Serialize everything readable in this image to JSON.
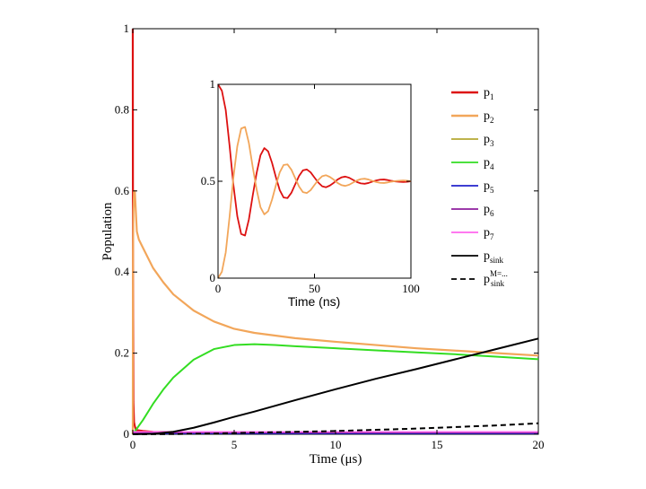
{
  "chart_data": [
    {
      "type": "line",
      "xlabel": "Time (μs)",
      "ylabel": "Population",
      "xlim": [
        0,
        20
      ],
      "ylim": [
        0,
        1
      ],
      "xticks": [
        "0",
        "5",
        "10",
        "15",
        "20"
      ],
      "yticks": [
        "0",
        "0.2",
        "0.4",
        "0.6",
        "0.8",
        "1"
      ],
      "series": [
        {
          "name": "p1",
          "color": "#dd1111",
          "width": 2.2,
          "dash": "",
          "x": [
            0,
            0.003,
            0.01,
            0.03,
            0.06,
            0.1,
            0.15,
            0.2,
            0.5,
            1,
            5,
            20
          ],
          "y": [
            1.0,
            0.75,
            0.42,
            0.08,
            0.03,
            0.02,
            0.012,
            0.01,
            0.008,
            0.006,
            0.004,
            0.003
          ]
        },
        {
          "name": "p2",
          "color": "#f2a65a",
          "width": 2.2,
          "dash": "",
          "x": [
            0,
            0.01,
            0.03,
            0.06,
            0.1,
            0.15,
            0.2,
            0.3,
            0.5,
            1,
            1.5,
            2,
            3,
            4,
            5,
            6,
            8,
            10,
            12,
            14,
            16,
            18,
            20
          ],
          "y": [
            0,
            0.45,
            0.55,
            0.6,
            0.6,
            0.55,
            0.5,
            0.48,
            0.46,
            0.41,
            0.375,
            0.345,
            0.305,
            0.278,
            0.26,
            0.25,
            0.237,
            0.228,
            0.22,
            0.212,
            0.206,
            0.2,
            0.194
          ]
        },
        {
          "name": "p3",
          "color": "#b5a833",
          "width": 1.5,
          "dash": "",
          "x": [
            0,
            20
          ],
          "y": [
            0.003,
            0.003
          ]
        },
        {
          "name": "p4",
          "color": "#33dd22",
          "width": 2.0,
          "dash": "",
          "x": [
            0,
            0.5,
            1,
            1.5,
            2,
            3,
            4,
            5,
            6,
            7,
            8,
            10,
            12,
            14,
            16,
            18,
            20
          ],
          "y": [
            0,
            0.035,
            0.075,
            0.11,
            0.14,
            0.184,
            0.21,
            0.22,
            0.222,
            0.22,
            0.217,
            0.212,
            0.207,
            0.202,
            0.197,
            0.191,
            0.185
          ]
        },
        {
          "name": "p5",
          "color": "#2222cc",
          "width": 1.5,
          "dash": "",
          "x": [
            0,
            20
          ],
          "y": [
            0.002,
            0.002
          ]
        },
        {
          "name": "p6",
          "color": "#8e1f9e",
          "width": 1.5,
          "dash": "",
          "x": [
            0,
            20
          ],
          "y": [
            0.004,
            0.004
          ]
        },
        {
          "name": "p7",
          "color": "#ff66ee",
          "width": 1.5,
          "dash": "",
          "x": [
            0,
            20
          ],
          "y": [
            0.006,
            0.006
          ]
        },
        {
          "name": "p_sink",
          "color": "#000000",
          "width": 2.0,
          "dash": "",
          "x": [
            0,
            1,
            2,
            3,
            4,
            5,
            6,
            8,
            10,
            12,
            14,
            16,
            18,
            20
          ],
          "y": [
            0,
            0.001,
            0.006,
            0.016,
            0.029,
            0.043,
            0.056,
            0.084,
            0.111,
            0.137,
            0.161,
            0.186,
            0.211,
            0.236
          ]
        },
        {
          "name": "p_sink^{M=...}",
          "color": "#000000",
          "width": 2.0,
          "dash": "6,4",
          "x": [
            0,
            2,
            4,
            6,
            8,
            10,
            12,
            14,
            16,
            18,
            20
          ],
          "y": [
            0,
            0.0005,
            0.002,
            0.004,
            0.006,
            0.008,
            0.011,
            0.014,
            0.018,
            0.022,
            0.027
          ]
        }
      ]
    },
    {
      "type": "line",
      "inset": true,
      "xlabel": "Time (ns)",
      "xlim": [
        0,
        100
      ],
      "ylim": [
        0,
        1
      ],
      "xticks": [
        "0",
        "50",
        "100"
      ],
      "yticks": [
        "0",
        "0.5",
        "1"
      ],
      "series": [
        {
          "name": "p1",
          "color": "#dd1111",
          "width": 1.8,
          "x": [
            0,
            2,
            4,
            6,
            8,
            10,
            12,
            14,
            16,
            18,
            20,
            22,
            24,
            26,
            28,
            30,
            32,
            34,
            36,
            38,
            40,
            42,
            44,
            46,
            48,
            50,
            52,
            54,
            56,
            58,
            60,
            62,
            64,
            66,
            68,
            70,
            72,
            74,
            76,
            78,
            80,
            82,
            84,
            86,
            88,
            90,
            92,
            94,
            96,
            98,
            100
          ],
          "y": [
            1.0,
            0.967,
            0.867,
            0.682,
            0.479,
            0.319,
            0.228,
            0.22,
            0.303,
            0.427,
            0.542,
            0.634,
            0.671,
            0.654,
            0.595,
            0.521,
            0.454,
            0.416,
            0.413,
            0.44,
            0.484,
            0.527,
            0.556,
            0.561,
            0.546,
            0.519,
            0.493,
            0.474,
            0.469,
            0.478,
            0.492,
            0.509,
            0.52,
            0.524,
            0.518,
            0.507,
            0.496,
            0.489,
            0.487,
            0.491,
            0.498,
            0.504,
            0.508,
            0.509,
            0.506,
            0.502,
            0.499,
            0.497,
            0.496,
            0.497,
            0.5
          ]
        },
        {
          "name": "p2",
          "color": "#f2a65a",
          "width": 1.8,
          "x": [
            0,
            2,
            4,
            6,
            8,
            10,
            12,
            14,
            16,
            18,
            20,
            22,
            24,
            26,
            28,
            30,
            32,
            34,
            36,
            38,
            40,
            42,
            44,
            46,
            48,
            50,
            52,
            54,
            56,
            58,
            60,
            62,
            64,
            66,
            68,
            70,
            72,
            74,
            76,
            78,
            80,
            82,
            84,
            86,
            88,
            90,
            92,
            94,
            96,
            98,
            100
          ],
          "y": [
            0.0,
            0.033,
            0.133,
            0.318,
            0.521,
            0.681,
            0.772,
            0.78,
            0.697,
            0.573,
            0.458,
            0.366,
            0.329,
            0.346,
            0.405,
            0.479,
            0.546,
            0.584,
            0.587,
            0.56,
            0.516,
            0.473,
            0.444,
            0.439,
            0.454,
            0.481,
            0.507,
            0.526,
            0.531,
            0.522,
            0.508,
            0.491,
            0.48,
            0.476,
            0.482,
            0.493,
            0.504,
            0.511,
            0.513,
            0.509,
            0.502,
            0.496,
            0.492,
            0.491,
            0.494,
            0.498,
            0.501,
            0.503,
            0.504,
            0.503,
            0.5
          ]
        }
      ]
    }
  ],
  "legend": [
    {
      "label": "p",
      "sub": "1",
      "sup": "",
      "color": "#dd1111",
      "dash": ""
    },
    {
      "label": "p",
      "sub": "2",
      "sup": "",
      "color": "#f2a65a",
      "dash": ""
    },
    {
      "label": "p",
      "sub": "3",
      "sup": "",
      "color": "#b5a833",
      "dash": ""
    },
    {
      "label": "p",
      "sub": "4",
      "sup": "",
      "color": "#33dd22",
      "dash": ""
    },
    {
      "label": "p",
      "sub": "5",
      "sup": "",
      "color": "#2222cc",
      "dash": ""
    },
    {
      "label": "p",
      "sub": "6",
      "sup": "",
      "color": "#8e1f9e",
      "dash": ""
    },
    {
      "label": "p",
      "sub": "7",
      "sup": "",
      "color": "#ff66ee",
      "dash": ""
    },
    {
      "label": "p",
      "sub": "sink",
      "sup": "",
      "color": "#000000",
      "dash": ""
    },
    {
      "label": "p",
      "sub": "sink",
      "sup": "M=...",
      "color": "#000000",
      "dash": "6,4"
    }
  ]
}
